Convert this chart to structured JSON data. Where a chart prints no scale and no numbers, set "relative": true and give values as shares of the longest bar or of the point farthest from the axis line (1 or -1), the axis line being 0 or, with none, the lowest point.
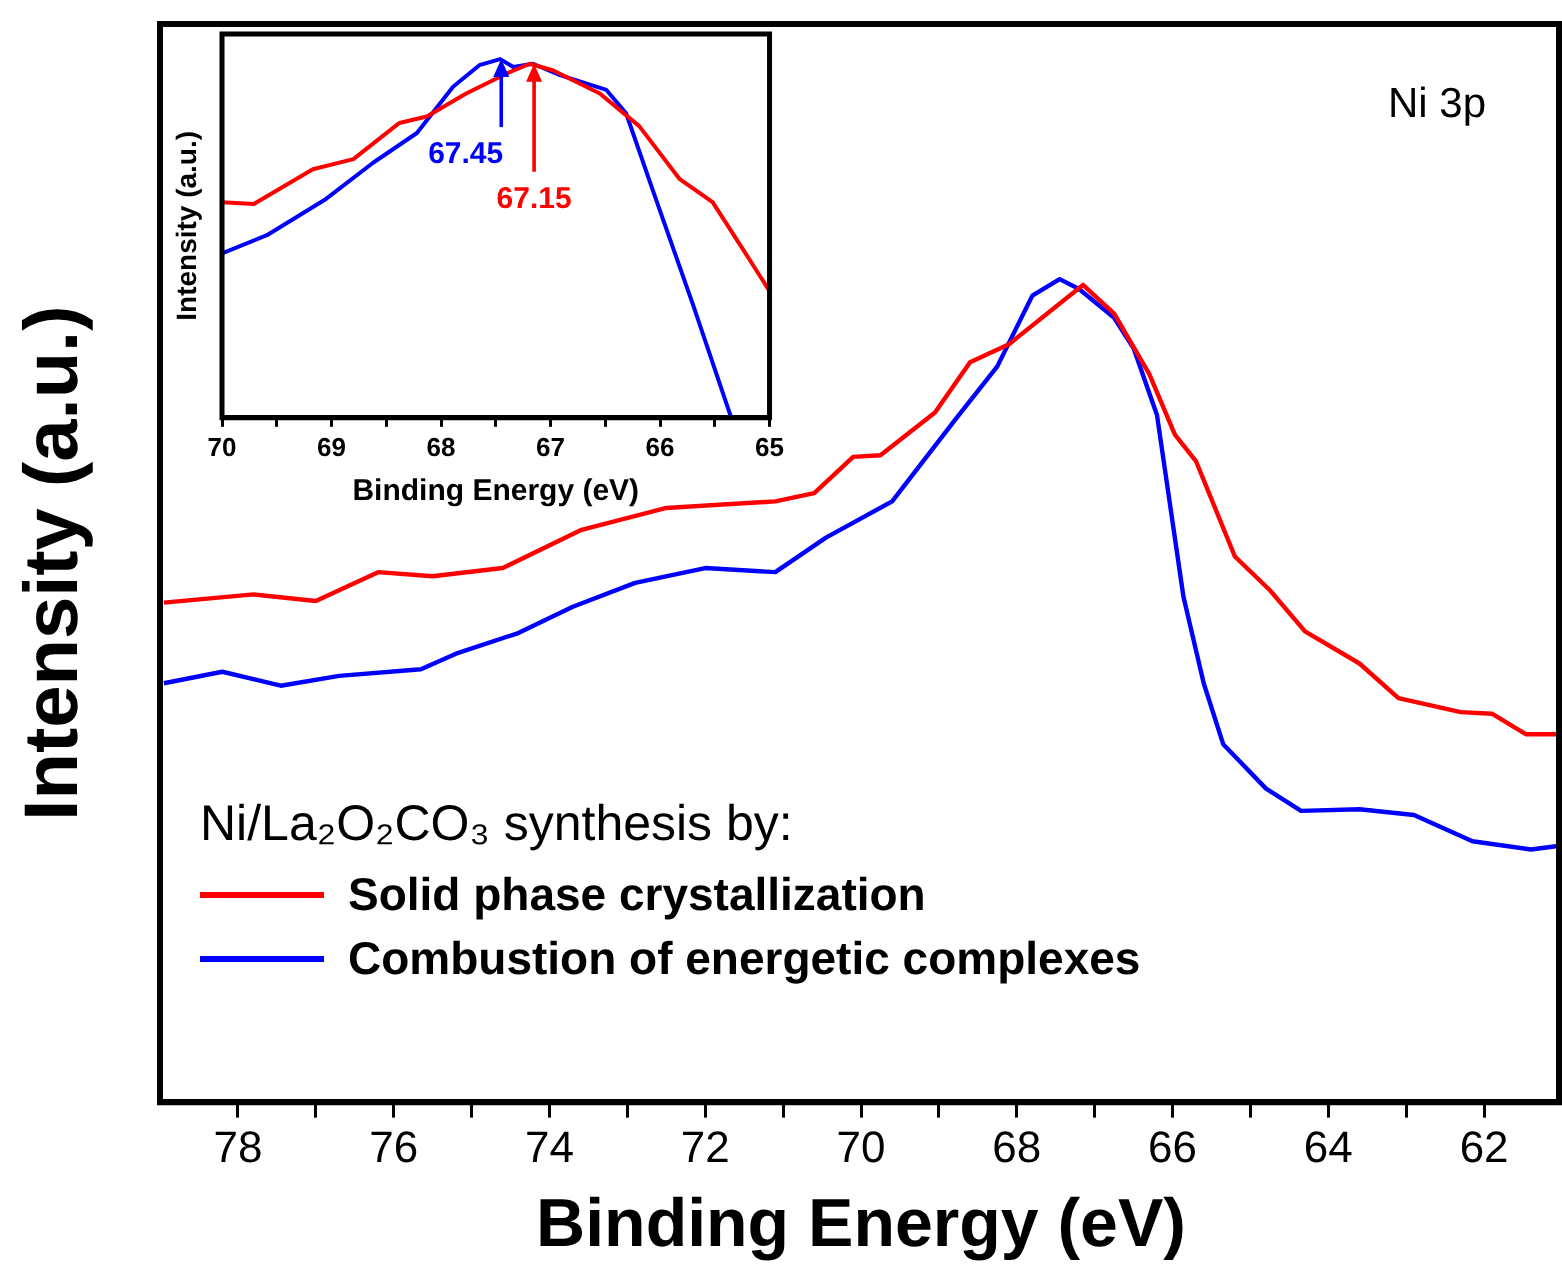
{
  "chart_data": [
    {
      "type": "line",
      "xlabel": "Binding Energy (eV)",
      "ylabel": "Intensity (a.u.)",
      "relative": true,
      "xlim": [
        79,
        61
      ],
      "xticks": [
        78,
        {
          "value": 77,
          "label": null
        },
        76,
        {
          "value": 75,
          "label": null
        },
        74,
        {
          "value": 73,
          "label": null
        },
        72,
        {
          "value": 71,
          "label": null
        },
        70,
        {
          "value": 69,
          "label": null
        },
        68,
        {
          "value": 67,
          "label": null
        },
        66,
        {
          "value": 65,
          "label": null
        },
        64,
        {
          "value": 63,
          "label": null
        },
        62
      ],
      "legend": "bottom left",
      "legend_title": "Ni/La₂O₂CO₃ synthesis by:",
      "annotations": [
        "Ni 3p"
      ],
      "series": [
        {
          "name": "Solid phase crystallization",
          "color": "#ff0000",
          "x": [
            78.95,
            77.8,
            77.0,
            76.2,
            75.5,
            74.6,
            73.6,
            72.5,
            71.1,
            70.6,
            70.1,
            69.75,
            69.05,
            68.6,
            68.1,
            67.15,
            66.75,
            66.3,
            65.97,
            65.7,
            65.2,
            64.75,
            64.3,
            63.6,
            63.1,
            62.3,
            61.9,
            61.46,
            61.0
          ],
          "values": [
            0.607,
            0.617,
            0.609,
            0.644,
            0.639,
            0.649,
            0.695,
            0.722,
            0.73,
            0.74,
            0.784,
            0.786,
            0.838,
            0.899,
            0.921,
            0.993,
            0.958,
            0.885,
            0.811,
            0.779,
            0.663,
            0.622,
            0.572,
            0.533,
            0.491,
            0.474,
            0.472,
            0.447,
            0.447
          ]
        },
        {
          "name": "Combustion of energetic complexes",
          "color": "#0000ff",
          "x": [
            78.95,
            78.2,
            77.45,
            76.7,
            75.65,
            75.2,
            74.4,
            73.7,
            72.9,
            72.0,
            71.1,
            70.45,
            69.6,
            68.8,
            68.25,
            67.8,
            67.45,
            67.2,
            66.75,
            66.5,
            66.2,
            65.86,
            65.6,
            65.35,
            64.8,
            64.35,
            63.6,
            62.9,
            62.15,
            61.4,
            61.0
          ],
          "values": [
            0.509,
            0.523,
            0.506,
            0.518,
            0.526,
            0.545,
            0.57,
            0.602,
            0.631,
            0.649,
            0.644,
            0.686,
            0.73,
            0.828,
            0.894,
            0.98,
            1.0,
            0.988,
            0.953,
            0.916,
            0.835,
            0.614,
            0.509,
            0.435,
            0.381,
            0.354,
            0.356,
            0.349,
            0.317,
            0.307,
            0.312
          ]
        }
      ]
    },
    {
      "type": "line",
      "xlabel": "Binding Energy (eV)",
      "ylabel": "Intensity (a.u.)",
      "relative": true,
      "xlim": [
        70,
        65
      ],
      "xticks": [
        70,
        {
          "value": 69.5,
          "label": null
        },
        69,
        {
          "value": 68.5,
          "label": null
        },
        68,
        {
          "value": 67.5,
          "label": null
        },
        67,
        {
          "value": 66.5,
          "label": null
        },
        66,
        {
          "value": 65.5,
          "label": null
        },
        65
      ],
      "annotations": [
        {
          "text": "67.45",
          "x": 67.45,
          "y": 1.0
        },
        {
          "text": "67.15",
          "x": 67.15,
          "y": 0.987
        }
      ],
      "series": [
        {
          "color": "#ff0000",
          "x": [
            70,
            69.71,
            69.17,
            68.8,
            68.38,
            68.13,
            67.77,
            67.4,
            67.19,
            66.98,
            66.55,
            66.19,
            65.82,
            65.52,
            65.21,
            65.0
          ],
          "values": [
            0.601,
            0.596,
            0.693,
            0.721,
            0.822,
            0.84,
            0.904,
            0.96,
            0.987,
            0.969,
            0.904,
            0.813,
            0.665,
            0.601,
            0.454,
            0.353
          ]
        },
        {
          "color": "#0000ff",
          "x": [
            70,
            69.59,
            69.05,
            68.62,
            68.22,
            67.89,
            67.65,
            67.46,
            67.34,
            67.16,
            66.92,
            66.49,
            66.31,
            66.06,
            65.7,
            65.35
          ],
          "values": [
            0.458,
            0.509,
            0.61,
            0.711,
            0.794,
            0.923,
            0.983,
            1.0,
            0.978,
            0.987,
            0.956,
            0.914,
            0.849,
            0.629,
            0.316,
            0.0
          ]
        }
      ]
    }
  ]
}
